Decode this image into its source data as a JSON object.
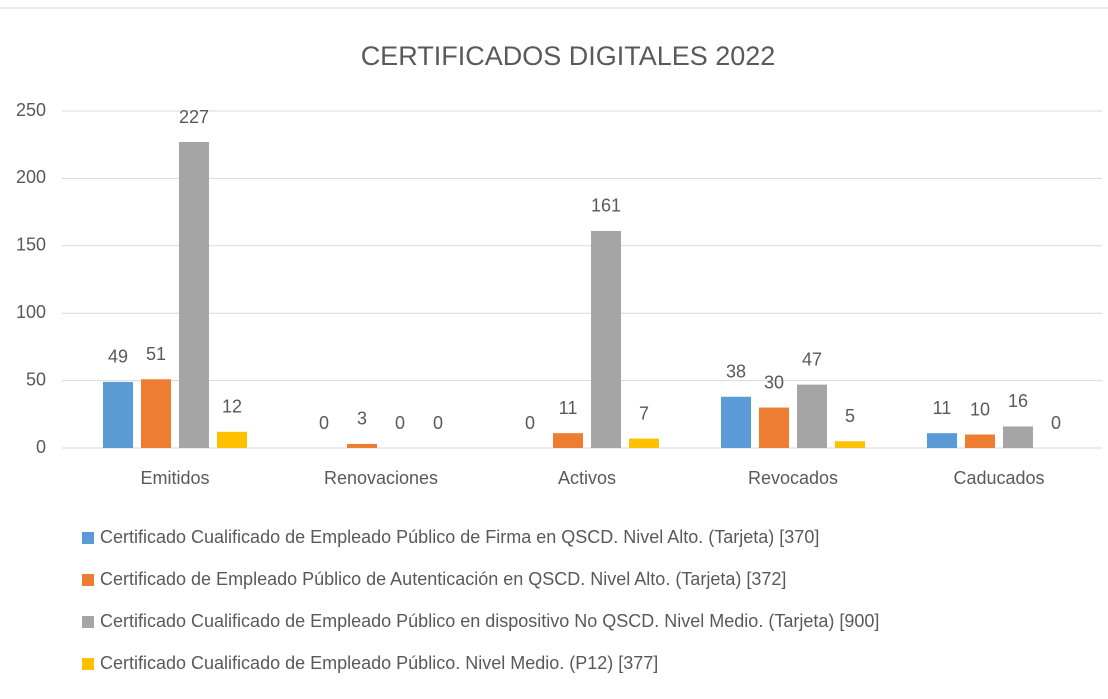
{
  "chart_data": {
    "type": "bar",
    "title": "CERTIFICADOS DIGITALES 2022",
    "categories": [
      "Emitidos",
      "Renovaciones",
      "Activos",
      "Revocados",
      "Caducados"
    ],
    "series": [
      {
        "name": "Certificado Cualificado de Empleado Público de Firma en QSCD. Nivel Alto. (Tarjeta) [370]",
        "color": "#5b9bd5",
        "values": [
          49,
          0,
          0,
          38,
          11
        ]
      },
      {
        "name": "Certificado de Empleado Público de Autenticación en QSCD. Nivel Alto. (Tarjeta) [372]",
        "color": "#ed7d31",
        "values": [
          51,
          3,
          11,
          30,
          10
        ]
      },
      {
        "name": "Certificado Cualificado de Empleado Público en dispositivo No QSCD. Nivel Medio. (Tarjeta) [900]",
        "color": "#a5a5a5",
        "values": [
          227,
          0,
          161,
          47,
          16
        ]
      },
      {
        "name": "Certificado Cualificado de Empleado Público. Nivel Medio. (P12) [377]",
        "color": "#ffc000",
        "values": [
          12,
          0,
          7,
          5,
          0
        ]
      }
    ],
    "ylim": [
      0,
      250
    ],
    "yticks": [
      0,
      50,
      100,
      150,
      200,
      250
    ],
    "grid": true,
    "legend": "bottom"
  }
}
